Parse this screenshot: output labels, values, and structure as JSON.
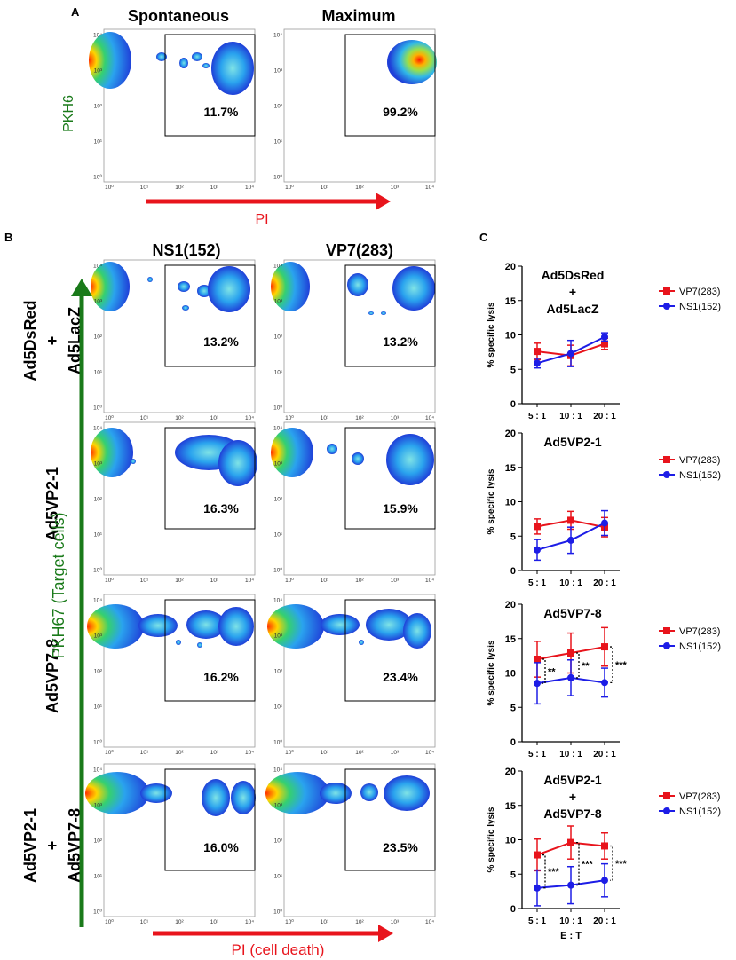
{
  "colors": {
    "red": "#e8141c",
    "blue": "#1d1de6",
    "green": "#1a7a1a",
    "black": "#000000"
  },
  "panel_a": {
    "letter": "A",
    "col_titles": [
      "Spontaneous",
      "Maximum"
    ],
    "ylabel": "PKH6",
    "xlabel": "PI",
    "percentages": [
      "11.7%",
      "99.2%"
    ]
  },
  "panel_b": {
    "letter": "B",
    "col_titles": [
      "NS1(152)",
      "VP7(283)"
    ],
    "row_labels": [
      {
        "line1": "Ad5DsRed",
        "plus": "+",
        "line2": "Ad5LacZ"
      },
      {
        "line1": "Ad5VP2-1",
        "plus": "",
        "line2": ""
      },
      {
        "line1": "Ad5VP7-8",
        "plus": "",
        "line2": ""
      },
      {
        "line1": "Ad5VP2-1",
        "plus": "+",
        "line2": "Ad5VP7-8"
      }
    ],
    "ylabel": "PKH67 (Target cells)",
    "xlabel": "PI (cell death)",
    "percentages": [
      [
        "13.2%",
        "13.2%"
      ],
      [
        "16.3%",
        "15.9%"
      ],
      [
        "16.2%",
        "23.4%"
      ],
      [
        "16.0%",
        "23.5%"
      ]
    ]
  },
  "flow_axis": {
    "y_ticks": [
      "10⁰",
      "10¹",
      "10²",
      "10³",
      "10⁴"
    ],
    "x_ticks": [
      "10⁰",
      "10¹",
      "10²",
      "10³",
      "10⁴"
    ]
  },
  "chart_data": [
    {
      "type": "line",
      "panel": "C",
      "title_lines": [
        "Ad5DsRed",
        "+",
        "Ad5LacZ"
      ],
      "categories": [
        "5 : 1",
        "10 : 1",
        "20 : 1"
      ],
      "ylabel": "% specific lysis",
      "xlabel": "",
      "ylim": [
        0,
        20
      ],
      "yticks": [
        0,
        5,
        10,
        15,
        20
      ],
      "series": [
        {
          "name": "VP7(283)",
          "color": "red",
          "values": [
            7.6,
            7.0,
            8.7
          ],
          "errors": [
            1.2,
            1.5,
            0.8
          ]
        },
        {
          "name": "NS1(152)",
          "color": "blue",
          "values": [
            5.9,
            7.3,
            9.7
          ],
          "errors": [
            0.7,
            1.9,
            0.6
          ]
        }
      ],
      "significance": []
    },
    {
      "type": "line",
      "panel": "C",
      "title_lines": [
        "Ad5VP2-1"
      ],
      "categories": [
        "5 : 1",
        "10 : 1",
        "20 : 1"
      ],
      "ylabel": "% specific lysis",
      "xlabel": "",
      "ylim": [
        0,
        20
      ],
      "yticks": [
        0,
        5,
        10,
        15,
        20
      ],
      "series": [
        {
          "name": "VP7(283)",
          "color": "red",
          "values": [
            6.4,
            7.3,
            6.3
          ],
          "errors": [
            1.1,
            1.3,
            1.4
          ]
        },
        {
          "name": "NS1(152)",
          "color": "blue",
          "values": [
            3.0,
            4.4,
            6.9
          ],
          "errors": [
            1.5,
            1.9,
            1.8
          ]
        }
      ],
      "significance": []
    },
    {
      "type": "line",
      "panel": "C",
      "title_lines": [
        "Ad5VP7-8"
      ],
      "categories": [
        "5 : 1",
        "10 : 1",
        "20 : 1"
      ],
      "ylabel": "% specific lysis",
      "xlabel": "",
      "ylim": [
        0,
        20
      ],
      "yticks": [
        0,
        5,
        10,
        15,
        20
      ],
      "series": [
        {
          "name": "VP7(283)",
          "color": "red",
          "values": [
            12.0,
            12.9,
            13.8
          ],
          "errors": [
            2.6,
            2.9,
            2.8
          ]
        },
        {
          "name": "NS1(152)",
          "color": "blue",
          "values": [
            8.5,
            9.3,
            8.6
          ],
          "errors": [
            3.0,
            2.6,
            2.1
          ]
        }
      ],
      "significance": [
        "**",
        "**",
        "***"
      ]
    },
    {
      "type": "line",
      "panel": "C",
      "title_lines": [
        "Ad5VP2-1",
        "+",
        "Ad5VP7-8"
      ],
      "categories": [
        "5 : 1",
        "10 : 1",
        "20 : 1"
      ],
      "ylabel": "% specific lysis",
      "xlabel": "E : T",
      "ylim": [
        0,
        20
      ],
      "yticks": [
        0,
        5,
        10,
        15,
        20
      ],
      "series": [
        {
          "name": "VP7(283)",
          "color": "red",
          "values": [
            7.8,
            9.6,
            9.1
          ],
          "errors": [
            2.3,
            2.4,
            1.9
          ]
        },
        {
          "name": "NS1(152)",
          "color": "blue",
          "values": [
            3.0,
            3.4,
            4.1
          ],
          "errors": [
            2.6,
            2.7,
            2.4
          ]
        }
      ],
      "significance": [
        "***",
        "***",
        "***"
      ]
    }
  ],
  "panel_c": {
    "letter": "C"
  }
}
